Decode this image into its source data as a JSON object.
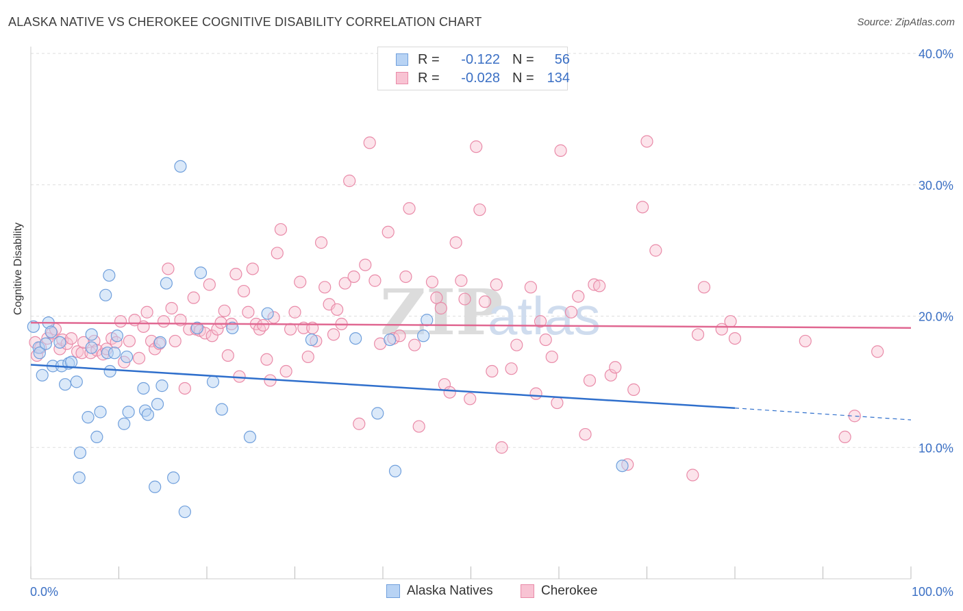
{
  "title": "ALASKA NATIVE VS CHEROKEE COGNITIVE DISABILITY CORRELATION CHART",
  "source": "Source: ZipAtlas.com",
  "watermark": "ZIPatlas",
  "colors": {
    "blue_fill": "#b8d3f4",
    "blue_stroke": "#6f9fdc",
    "blue_line": "#2f6fcc",
    "pink_fill": "#f8c3d3",
    "pink_stroke": "#e98aa8",
    "pink_line": "#e06791",
    "axis_text": "#3a6fc4",
    "grid": "#dddddd"
  },
  "legend": {
    "rows": [
      {
        "r_label": "R =",
        "r_value": "-0.122",
        "n_label": "N =",
        "n_value": "56"
      },
      {
        "r_label": "R =",
        "r_value": "-0.028",
        "n_label": "N =",
        "n_value": "134"
      }
    ]
  },
  "bottom_legend": [
    "Alaska Natives",
    "Cherokee"
  ],
  "chart_data": {
    "type": "scatter",
    "title": "ALASKA NATIVE VS CHEROKEE COGNITIVE DISABILITY CORRELATION CHART",
    "xlabel": "",
    "ylabel": "Cognitive Disability",
    "xlim": [
      0,
      100
    ],
    "ylim": [
      0,
      40
    ],
    "x_tick_labels": [
      "0.0%",
      "100.0%"
    ],
    "y_ticks": [
      10,
      20,
      30,
      40
    ],
    "y_tick_labels": [
      "10.0%",
      "20.0%",
      "30.0%",
      "40.0%"
    ],
    "grid": true,
    "series": [
      {
        "name": "Alaska Natives",
        "r": -0.122,
        "n": 56,
        "trend": {
          "x0": 0,
          "y0": 16.3,
          "x1": 80,
          "y1": 13.0,
          "x_dash_end": 100,
          "y_dash_end": 12.1
        },
        "points": [
          [
            0.3,
            19.2
          ],
          [
            0.9,
            17.6
          ],
          [
            1.0,
            17.2
          ],
          [
            1.3,
            15.5
          ],
          [
            1.7,
            17.9
          ],
          [
            2.0,
            19.5
          ],
          [
            2.3,
            18.8
          ],
          [
            2.5,
            16.2
          ],
          [
            3.3,
            18.0
          ],
          [
            3.5,
            16.2
          ],
          [
            3.9,
            14.8
          ],
          [
            4.3,
            16.4
          ],
          [
            4.6,
            16.5
          ],
          [
            5.2,
            15.0
          ],
          [
            5.5,
            7.7
          ],
          [
            5.6,
            9.6
          ],
          [
            6.5,
            12.3
          ],
          [
            6.9,
            18.6
          ],
          [
            6.9,
            17.6
          ],
          [
            7.5,
            10.8
          ],
          [
            7.9,
            12.7
          ],
          [
            8.5,
            21.6
          ],
          [
            8.7,
            17.2
          ],
          [
            8.9,
            23.1
          ],
          [
            9.0,
            15.8
          ],
          [
            9.5,
            17.2
          ],
          [
            9.8,
            18.5
          ],
          [
            10.6,
            11.8
          ],
          [
            10.9,
            16.9
          ],
          [
            11.1,
            12.7
          ],
          [
            12.8,
            14.5
          ],
          [
            13.0,
            12.8
          ],
          [
            13.3,
            12.5
          ],
          [
            14.1,
            7.0
          ],
          [
            14.4,
            13.3
          ],
          [
            14.7,
            18.0
          ],
          [
            14.9,
            14.7
          ],
          [
            15.4,
            22.5
          ],
          [
            16.2,
            7.7
          ],
          [
            17.0,
            31.4
          ],
          [
            17.5,
            5.1
          ],
          [
            18.9,
            19.1
          ],
          [
            19.3,
            23.3
          ],
          [
            20.7,
            15.0
          ],
          [
            21.7,
            12.9
          ],
          [
            22.9,
            19.1
          ],
          [
            24.9,
            10.8
          ],
          [
            26.9,
            20.2
          ],
          [
            31.9,
            18.2
          ],
          [
            39.4,
            12.6
          ],
          [
            36.9,
            18.3
          ],
          [
            40.8,
            18.2
          ],
          [
            41.4,
            8.2
          ],
          [
            44.6,
            18.5
          ],
          [
            45.0,
            19.7
          ],
          [
            67.2,
            8.6
          ]
        ]
      },
      {
        "name": "Cherokee",
        "r": -0.028,
        "n": 134,
        "trend": {
          "x0": 0,
          "y0": 19.5,
          "x1": 100,
          "y1": 19.1
        },
        "points": [
          [
            0.5,
            18.0
          ],
          [
            0.7,
            17.0
          ],
          [
            1.1,
            17.6
          ],
          [
            1.9,
            18.3
          ],
          [
            2.4,
            18.7
          ],
          [
            2.8,
            19.0
          ],
          [
            3.3,
            17.5
          ],
          [
            3.6,
            18.2
          ],
          [
            4.1,
            17.9
          ],
          [
            4.6,
            18.3
          ],
          [
            5.3,
            17.3
          ],
          [
            5.8,
            17.2
          ],
          [
            6.0,
            18.0
          ],
          [
            6.8,
            17.2
          ],
          [
            7.2,
            18.1
          ],
          [
            7.5,
            17.4
          ],
          [
            8.2,
            17.1
          ],
          [
            8.6,
            17.5
          ],
          [
            9.2,
            18.3
          ],
          [
            9.7,
            18.0
          ],
          [
            10.2,
            19.6
          ],
          [
            10.6,
            16.5
          ],
          [
            11.2,
            18.1
          ],
          [
            11.8,
            19.7
          ],
          [
            12.3,
            16.8
          ],
          [
            12.8,
            19.2
          ],
          [
            13.2,
            20.3
          ],
          [
            13.7,
            18.1
          ],
          [
            14.1,
            17.5
          ],
          [
            14.6,
            17.9
          ],
          [
            15.1,
            19.6
          ],
          [
            15.6,
            23.6
          ],
          [
            16.0,
            20.6
          ],
          [
            16.4,
            18.1
          ],
          [
            17.0,
            19.7
          ],
          [
            17.5,
            14.5
          ],
          [
            18.0,
            19.0
          ],
          [
            18.5,
            21.4
          ],
          [
            18.8,
            19.0
          ],
          [
            19.2,
            18.9
          ],
          [
            19.8,
            18.7
          ],
          [
            20.3,
            22.4
          ],
          [
            20.6,
            18.5
          ],
          [
            21.2,
            19.0
          ],
          [
            21.6,
            19.5
          ],
          [
            22.0,
            20.4
          ],
          [
            22.4,
            17.0
          ],
          [
            22.8,
            19.4
          ],
          [
            23.3,
            23.2
          ],
          [
            23.7,
            15.4
          ],
          [
            24.2,
            21.9
          ],
          [
            24.7,
            20.3
          ],
          [
            25.2,
            23.6
          ],
          [
            25.6,
            19.4
          ],
          [
            26.0,
            19.0
          ],
          [
            26.4,
            19.3
          ],
          [
            26.8,
            16.7
          ],
          [
            27.2,
            15.1
          ],
          [
            27.6,
            19.9
          ],
          [
            28.0,
            24.8
          ],
          [
            28.4,
            26.6
          ],
          [
            29.0,
            15.8
          ],
          [
            29.5,
            19.0
          ],
          [
            30.0,
            20.3
          ],
          [
            30.6,
            22.6
          ],
          [
            31.0,
            19.1
          ],
          [
            31.5,
            16.9
          ],
          [
            32.0,
            19.1
          ],
          [
            32.4,
            18.1
          ],
          [
            33.0,
            25.6
          ],
          [
            33.4,
            22.2
          ],
          [
            33.9,
            20.9
          ],
          [
            34.4,
            18.6
          ],
          [
            34.8,
            20.5
          ],
          [
            35.3,
            19.4
          ],
          [
            35.7,
            22.5
          ],
          [
            36.2,
            30.3
          ],
          [
            36.7,
            23.0
          ],
          [
            37.3,
            11.8
          ],
          [
            38.0,
            23.9
          ],
          [
            38.5,
            33.2
          ],
          [
            39.1,
            22.7
          ],
          [
            39.7,
            17.9
          ],
          [
            40.6,
            26.4
          ],
          [
            41.2,
            18.3
          ],
          [
            41.9,
            18.5
          ],
          [
            42.6,
            23.0
          ],
          [
            43.0,
            28.2
          ],
          [
            43.6,
            17.8
          ],
          [
            44.1,
            11.6
          ],
          [
            45.6,
            22.6
          ],
          [
            46.1,
            21.4
          ],
          [
            46.6,
            20.6
          ],
          [
            47.0,
            14.8
          ],
          [
            47.6,
            14.2
          ],
          [
            48.3,
            25.6
          ],
          [
            48.9,
            22.7
          ],
          [
            49.3,
            21.3
          ],
          [
            49.9,
            13.7
          ],
          [
            50.6,
            32.9
          ],
          [
            51.0,
            28.1
          ],
          [
            51.6,
            21.1
          ],
          [
            52.4,
            15.8
          ],
          [
            52.9,
            22.4
          ],
          [
            53.5,
            10.0
          ],
          [
            54.6,
            16.0
          ],
          [
            55.2,
            17.8
          ],
          [
            56.8,
            22.2
          ],
          [
            57.4,
            14.1
          ],
          [
            57.9,
            19.6
          ],
          [
            58.5,
            18.2
          ],
          [
            59.2,
            16.9
          ],
          [
            59.8,
            13.4
          ],
          [
            60.2,
            32.6
          ],
          [
            61.4,
            20.3
          ],
          [
            62.2,
            21.5
          ],
          [
            63.0,
            11.0
          ],
          [
            63.5,
            15.1
          ],
          [
            64.0,
            22.4
          ],
          [
            64.6,
            22.3
          ],
          [
            65.9,
            15.5
          ],
          [
            66.4,
            16.1
          ],
          [
            67.8,
            8.7
          ],
          [
            68.5,
            14.4
          ],
          [
            69.5,
            28.3
          ],
          [
            70.0,
            33.3
          ],
          [
            71.0,
            25.0
          ],
          [
            75.2,
            7.9
          ],
          [
            75.8,
            18.6
          ],
          [
            76.5,
            22.2
          ],
          [
            78.5,
            19.0
          ],
          [
            79.5,
            19.6
          ],
          [
            80.0,
            18.3
          ],
          [
            88.0,
            18.1
          ],
          [
            92.5,
            10.8
          ],
          [
            93.6,
            12.4
          ],
          [
            96.2,
            17.3
          ]
        ]
      }
    ]
  }
}
